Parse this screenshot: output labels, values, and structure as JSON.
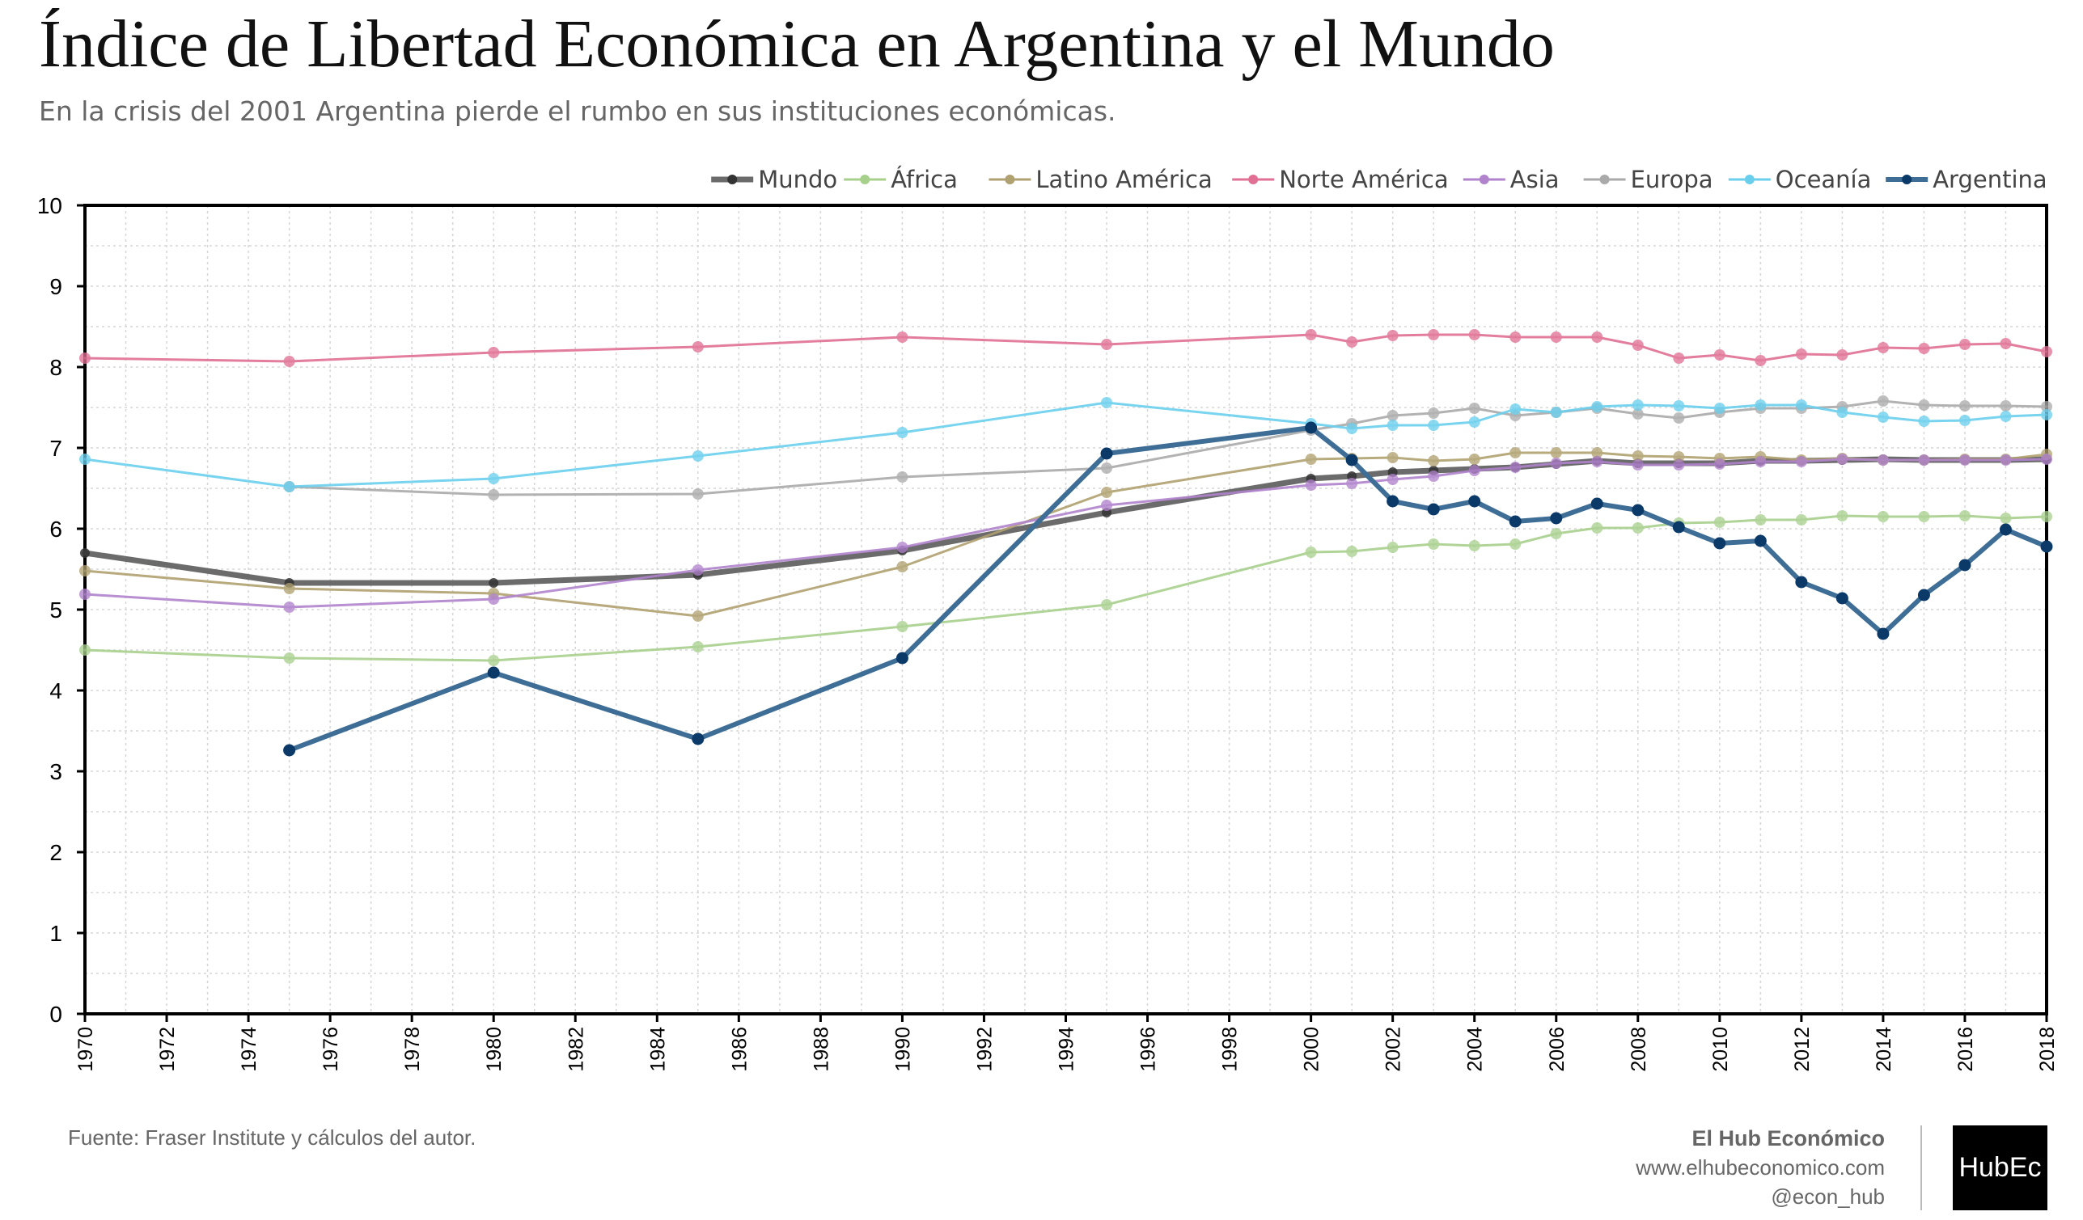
{
  "header": {
    "title": "Índice de Libertad Económica en Argentina y el Mundo",
    "subtitle": "En la crisis del 2001 Argentina pierde el rumbo en sus instituciones económicas."
  },
  "footer": {
    "source": "Fuente: Fraser Institute y cálculos del autor.",
    "brand_name": "El Hub Económico",
    "brand_url": "www.elhubeconomico.com",
    "brand_handle": "@econ_hub",
    "logo_text": "HubEc"
  },
  "chart_data": {
    "type": "line",
    "title": "Índice de Libertad Económica en Argentina y el Mundo",
    "xlabel": "",
    "ylabel": "",
    "xlim": [
      1970,
      2018
    ],
    "ylim": [
      0,
      10
    ],
    "x_ticks": [
      1970,
      1972,
      1974,
      1976,
      1978,
      1980,
      1982,
      1984,
      1986,
      1988,
      1990,
      1992,
      1994,
      1996,
      1998,
      2000,
      2002,
      2004,
      2006,
      2008,
      2010,
      2012,
      2014,
      2016,
      2018
    ],
    "y_ticks": [
      0,
      1,
      2,
      3,
      4,
      5,
      6,
      7,
      8,
      9,
      10
    ],
    "grid": true,
    "legend_position": "top-right",
    "x": [
      1970,
      1975,
      1980,
      1985,
      1990,
      1995,
      2000,
      2001,
      2002,
      2003,
      2004,
      2005,
      2006,
      2007,
      2008,
      2009,
      2010,
      2011,
      2012,
      2013,
      2014,
      2015,
      2016,
      2017,
      2018
    ],
    "series": [
      {
        "name": "Mundo",
        "color": "#6b6b6b",
        "width": 7,
        "values": [
          5.7,
          5.33,
          5.33,
          5.43,
          5.73,
          6.2,
          6.62,
          6.65,
          6.7,
          6.72,
          6.74,
          6.76,
          6.8,
          6.84,
          6.81,
          6.81,
          6.81,
          6.84,
          6.84,
          6.85,
          6.86,
          6.85,
          6.85,
          6.85,
          6.86
        ]
      },
      {
        "name": "África",
        "color": "#a8d08d",
        "width": 3,
        "values": [
          4.5,
          4.4,
          4.37,
          4.54,
          4.79,
          5.06,
          5.71,
          5.72,
          5.77,
          5.81,
          5.79,
          5.81,
          5.94,
          6.01,
          6.01,
          6.07,
          6.08,
          6.11,
          6.11,
          6.16,
          6.15,
          6.15,
          6.16,
          6.13,
          6.15
        ]
      },
      {
        "name": "Latino América",
        "color": "#b0a170",
        "width": 3,
        "values": [
          5.48,
          5.26,
          5.2,
          4.92,
          5.53,
          6.45,
          6.86,
          6.87,
          6.88,
          6.84,
          6.86,
          6.94,
          6.94,
          6.94,
          6.9,
          6.89,
          6.87,
          6.89,
          6.85,
          6.87,
          6.85,
          6.85,
          6.86,
          6.86,
          6.92
        ]
      },
      {
        "name": "Norte América",
        "color": "#e07094",
        "width": 3,
        "values": [
          8.11,
          8.07,
          8.18,
          8.25,
          8.37,
          8.28,
          8.4,
          8.31,
          8.39,
          8.4,
          8.4,
          8.37,
          8.37,
          8.37,
          8.27,
          8.11,
          8.15,
          8.08,
          8.16,
          8.15,
          8.24,
          8.23,
          8.28,
          8.29,
          8.19
        ]
      },
      {
        "name": "Asia",
        "color": "#b083cc",
        "width": 3,
        "values": [
          5.19,
          5.03,
          5.13,
          5.49,
          5.77,
          6.29,
          6.54,
          6.56,
          6.61,
          6.65,
          6.72,
          6.76,
          6.81,
          6.83,
          6.79,
          6.79,
          6.8,
          6.83,
          6.83,
          6.86,
          6.85,
          6.85,
          6.85,
          6.85,
          6.86
        ]
      },
      {
        "name": "Europa",
        "color": "#aaaaaa",
        "width": 3,
        "values": [
          null,
          6.52,
          6.42,
          6.43,
          6.64,
          6.75,
          7.22,
          7.3,
          7.4,
          7.43,
          7.49,
          7.4,
          7.44,
          7.49,
          7.42,
          7.37,
          7.44,
          7.49,
          7.49,
          7.51,
          7.58,
          7.53,
          7.52,
          7.52,
          7.51
        ]
      },
      {
        "name": "Oceanía",
        "color": "#6acfed",
        "width": 3,
        "values": [
          6.86,
          6.52,
          6.62,
          6.9,
          7.19,
          7.56,
          7.3,
          7.24,
          7.28,
          7.28,
          7.32,
          7.48,
          7.44,
          7.51,
          7.53,
          7.52,
          7.49,
          7.53,
          7.53,
          7.44,
          7.38,
          7.33,
          7.34,
          7.39,
          7.41
        ]
      },
      {
        "name": "Argentina",
        "color": "#3e6d96",
        "marker": "#0b3a69",
        "width": 6,
        "values": [
          null,
          3.26,
          4.22,
          3.4,
          4.4,
          6.93,
          7.25,
          6.85,
          6.34,
          6.24,
          6.34,
          6.09,
          6.13,
          6.31,
          6.23,
          6.02,
          5.82,
          5.85,
          5.34,
          5.14,
          4.7,
          5.18,
          5.55,
          5.99,
          5.78
        ]
      }
    ]
  }
}
